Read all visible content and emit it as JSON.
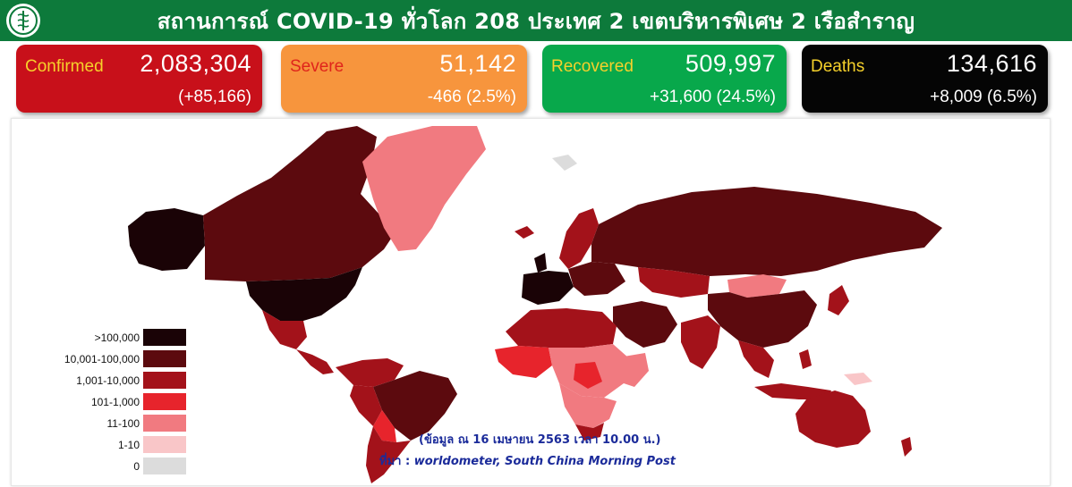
{
  "header": {
    "title": "สถานการณ์ COVID-19 ทั่วโลก 208 ประเทศ 2 เขตบริหารพิเศษ 2 เรือสำราญ",
    "logo_icon": "ministry-of-public-health-emblem-icon",
    "background": "#0d7a3b"
  },
  "cards": {
    "confirmed": {
      "label": "Confirmed",
      "value": "2,083,304",
      "delta": "(+85,166)",
      "color": "#c8101a"
    },
    "severe": {
      "label": "Severe",
      "value": "51,142",
      "delta": "-466 (2.5%)",
      "color": "#f7953d"
    },
    "recovered": {
      "label": "Recovered",
      "value": "509,997",
      "delta": "+31,600 (24.5%)",
      "color": "#08a84b"
    },
    "deaths": {
      "label": "Deaths",
      "value": "134,616",
      "delta": "+8,009 (6.5%)",
      "color": "#050505"
    }
  },
  "legend": [
    {
      "label": ">100,000",
      "color": "#1a0306"
    },
    {
      "label": "10,001-100,000",
      "color": "#5c0a0e"
    },
    {
      "label": "1,001-10,000",
      "color": "#a3121a"
    },
    {
      "label": "101-1,000",
      "color": "#e7242c"
    },
    {
      "label": "11-100",
      "color": "#f17a80"
    },
    {
      "label": "1-10",
      "color": "#f9c6c8"
    },
    {
      "label": "0",
      "color": "#dcdcdc"
    }
  ],
  "source": {
    "date_note": "(ข้อมูล ณ 16 เมษายน 2563 เวลา 10.00 น.)",
    "credit_prefix": "ที่มา : ",
    "credit": "worldometer, South China Morning Post"
  }
}
